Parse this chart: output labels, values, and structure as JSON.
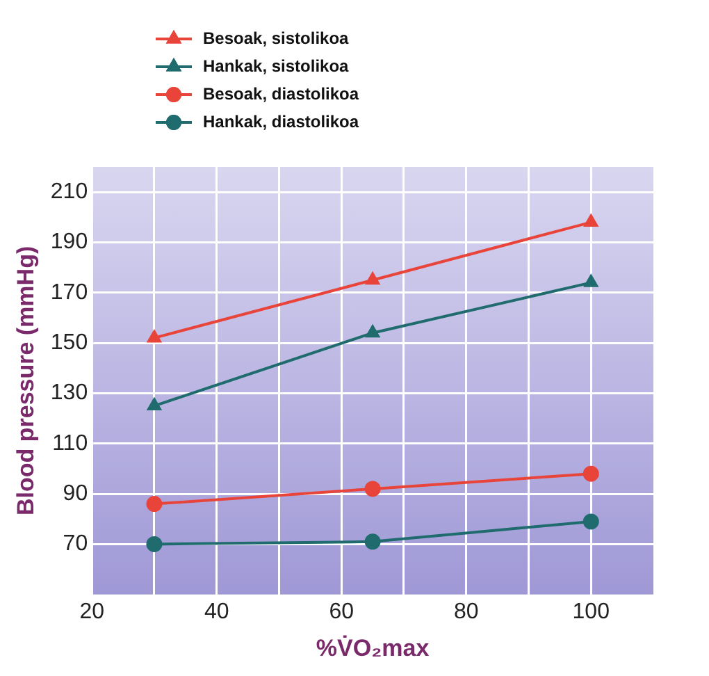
{
  "chart_data": {
    "type": "line",
    "xlabel": "%V̇O₂max",
    "ylabel": "Blood pressure (mmHg)",
    "x": [
      30,
      65,
      100
    ],
    "series": [
      {
        "name": "Besoak, sistolikoa",
        "color": "#e8443a",
        "values": [
          152,
          175,
          198
        ],
        "marker": "triangle"
      },
      {
        "name": "Hankak, sistolikoa",
        "color": "#1f6b6e",
        "values": [
          125,
          154,
          174
        ],
        "marker": "triangle"
      },
      {
        "name": "Besoak, diastolikoa",
        "color": "#e8443a",
        "values": [
          86,
          92,
          98
        ],
        "marker": "circle"
      },
      {
        "name": "Hankak, diastolikoa",
        "color": "#1f6b6e",
        "values": [
          70,
          71,
          79
        ],
        "marker": "circle"
      }
    ],
    "xlim": [
      20,
      110
    ],
    "xticks": [
      20,
      {
        "value": 30,
        "label": null
      },
      40,
      {
        "value": 50,
        "label": null
      },
      60,
      {
        "value": 70,
        "label": null
      },
      80,
      {
        "value": 90,
        "label": null
      },
      100
    ],
    "ylim": [
      50,
      220
    ],
    "yticks": [
      70,
      90,
      110,
      130,
      150,
      170,
      190,
      210
    ],
    "grid": true,
    "legend": "top left"
  }
}
